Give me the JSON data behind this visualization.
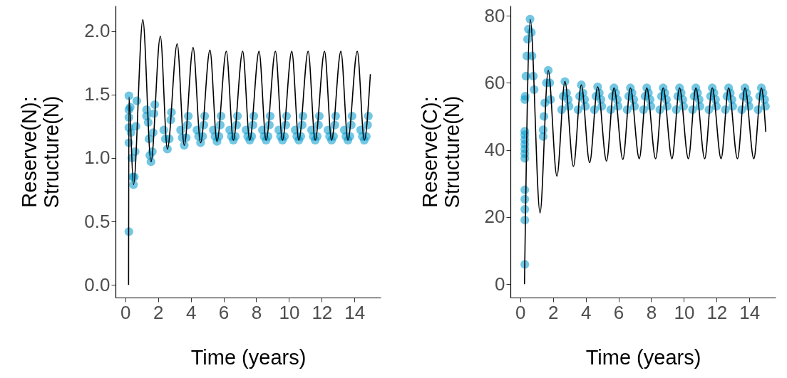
{
  "chart_data": [
    {
      "type": "line",
      "xlabel": "Time (years)",
      "ylabel": "Reserve(N):\nStructure(N)",
      "xlim": [
        -0.6,
        15.6
      ],
      "ylim": [
        -0.1,
        2.2
      ],
      "xticks": [
        0,
        2,
        4,
        6,
        8,
        10,
        12,
        14
      ],
      "yticks": [
        {
          "value": 0,
          "label": "0.0"
        },
        0.5,
        {
          "value": 1,
          "label": "1.0"
        },
        1.5,
        {
          "value": 2,
          "label": "2.0"
        }
      ],
      "grid": false,
      "series": [
        {
          "type": "scatter",
          "color": "#0099cc",
          "marker": "circle",
          "x": [
            0.22,
            0.22,
            0.22,
            0.22,
            0.22,
            0.22,
            0.3,
            0.35,
            0.4,
            0.45,
            0.5,
            0.55,
            0.6,
            0.65,
            0.7,
            1.3,
            1.3,
            1.4,
            1.45,
            1.5,
            1.57,
            1.65,
            1.7,
            1.75,
            1.8,
            2.35,
            2.45,
            2.57,
            2.68,
            2.78,
            2.82,
            3.38,
            3.48,
            3.6,
            3.72,
            3.8,
            3.85,
            4.38,
            4.48,
            4.6,
            4.72,
            4.8,
            4.85,
            5.38,
            5.48,
            5.6,
            5.72,
            5.8,
            5.85,
            6.38,
            6.48,
            6.6,
            6.72,
            6.8,
            6.85,
            7.38,
            7.48,
            7.6,
            7.72,
            7.8,
            7.85,
            8.38,
            8.48,
            8.6,
            8.72,
            8.8,
            8.85,
            9.38,
            9.48,
            9.6,
            9.72,
            9.8,
            9.85,
            10.38,
            10.48,
            10.6,
            10.72,
            10.8,
            10.85,
            11.38,
            11.48,
            11.6,
            11.72,
            11.8,
            11.85,
            12.38,
            12.48,
            12.6,
            12.72,
            12.8,
            12.85,
            13.38,
            13.48,
            13.6,
            13.72,
            13.8,
            13.85,
            14.38,
            14.48,
            14.6,
            14.72,
            14.8,
            14.85
          ],
          "values": [
            1.49,
            1.38,
            1.32,
            1.24,
            1.12,
            0.42,
            1.4,
            1.2,
            1.0,
            0.85,
            0.79,
            0.85,
            1.05,
            1.25,
            1.45,
            1.38,
            1.33,
            1.28,
            1.15,
            1.02,
            0.97,
            1.05,
            1.2,
            1.35,
            1.42,
            1.22,
            1.15,
            1.07,
            1.15,
            1.3,
            1.36,
            1.22,
            1.16,
            1.1,
            1.16,
            1.26,
            1.33,
            1.22,
            1.17,
            1.12,
            1.17,
            1.26,
            1.33,
            1.22,
            1.17,
            1.13,
            1.17,
            1.26,
            1.33,
            1.22,
            1.17,
            1.14,
            1.17,
            1.26,
            1.33,
            1.22,
            1.17,
            1.14,
            1.17,
            1.26,
            1.33,
            1.22,
            1.17,
            1.14,
            1.17,
            1.26,
            1.33,
            1.22,
            1.17,
            1.14,
            1.17,
            1.26,
            1.33,
            1.22,
            1.17,
            1.14,
            1.17,
            1.26,
            1.33,
            1.22,
            1.17,
            1.14,
            1.17,
            1.26,
            1.33,
            1.22,
            1.17,
            1.14,
            1.17,
            1.26,
            1.33,
            1.22,
            1.17,
            1.14,
            1.17,
            1.26,
            1.33,
            1.22,
            1.17,
            1.14,
            1.17,
            1.26,
            1.33
          ]
        },
        {
          "color": "#000000",
          "line_style": "solid",
          "x": [
            0.2,
            0.22,
            0.5,
            1.07,
            1.57,
            2.14,
            2.57,
            3.17,
            3.6,
            4.14,
            4.6,
            5.17,
            5.6,
            6.17,
            6.6,
            7.17,
            7.6,
            8.17,
            8.6,
            9.17,
            9.6,
            10.17,
            10.6,
            11.17,
            11.6,
            12.17,
            12.6,
            13.17,
            13.6,
            14.17,
            14.6,
            14.97
          ],
          "values": [
            0,
            1.48,
            0.79,
            2.09,
            0.97,
            1.96,
            1.07,
            1.9,
            1.1,
            1.87,
            1.12,
            1.85,
            1.13,
            1.84,
            1.14,
            1.84,
            1.14,
            1.84,
            1.14,
            1.84,
            1.14,
            1.84,
            1.14,
            1.84,
            1.14,
            1.84,
            1.14,
            1.84,
            1.14,
            1.84,
            1.14,
            1.66
          ]
        }
      ]
    },
    {
      "type": "line",
      "xlabel": "Time (years)",
      "ylabel": "Reserve(C):\nStructure(N)",
      "xlim": [
        -0.6,
        15.6
      ],
      "ylim": [
        -4,
        83
      ],
      "xticks": [
        0,
        2,
        4,
        6,
        8,
        10,
        12,
        14
      ],
      "yticks": [
        0,
        20,
        40,
        60,
        80
      ],
      "grid": false,
      "series": [
        {
          "type": "scatter",
          "color": "#0099cc",
          "marker": "circle",
          "x": [
            0.28,
            0.28,
            0.28,
            0.28,
            0.28,
            0.28,
            0.28,
            0.28,
            0.28,
            0.28,
            0.28,
            0.28,
            0.28,
            0.3,
            0.35,
            0.4,
            0.45,
            0.5,
            0.6,
            0.68,
            0.72,
            0.8,
            0.85,
            1.4,
            1.4,
            1.45,
            1.5,
            1.6,
            1.71,
            1.8,
            1.85,
            2.53,
            2.63,
            2.73,
            2.83,
            2.93,
            2.98,
            3.53,
            3.63,
            3.73,
            3.83,
            3.93,
            3.98,
            4.53,
            4.63,
            4.73,
            4.83,
            4.93,
            4.98,
            5.53,
            5.63,
            5.73,
            5.83,
            5.93,
            5.98,
            6.53,
            6.63,
            6.73,
            6.83,
            6.93,
            6.98,
            7.53,
            7.63,
            7.73,
            7.83,
            7.93,
            7.98,
            8.53,
            8.63,
            8.73,
            8.83,
            8.93,
            8.98,
            9.53,
            9.63,
            9.73,
            9.83,
            9.93,
            9.98,
            10.53,
            10.63,
            10.73,
            10.83,
            10.93,
            10.98,
            11.53,
            11.63,
            11.73,
            11.83,
            11.93,
            11.98,
            12.53,
            12.63,
            12.73,
            12.83,
            12.93,
            12.98,
            13.53,
            13.63,
            13.73,
            13.83,
            13.93,
            13.98,
            14.53,
            14.63,
            14.73,
            14.83,
            14.93,
            14.98
          ],
          "values": [
            5.9,
            19.1,
            22.3,
            25.3,
            28.1,
            37.5,
            38.9,
            40.3,
            41.7,
            43.1,
            44.5,
            45.6,
            55,
            56,
            62,
            68,
            73,
            76,
            79,
            75,
            68,
            62,
            58,
            44,
            46,
            50,
            54,
            60,
            63.7,
            60,
            55,
            52,
            56,
            60.4,
            57,
            55,
            53,
            52,
            56,
            59.4,
            57,
            55,
            53,
            52,
            56,
            58.8,
            57,
            55,
            53,
            52,
            56,
            58.5,
            57,
            55,
            53,
            52,
            56,
            58.5,
            57,
            55,
            53,
            52,
            56,
            58.5,
            57,
            55,
            53,
            52,
            56,
            58.5,
            57,
            55,
            53,
            52,
            56,
            58.5,
            57,
            55,
            53,
            52,
            56,
            58.5,
            57,
            55,
            53,
            52,
            56,
            58.5,
            57,
            55,
            53,
            52,
            56,
            58.5,
            57,
            55,
            53,
            52,
            56,
            58.5,
            57,
            55,
            53,
            52,
            56,
            58.5,
            57,
            55,
            53
          ]
        },
        {
          "color": "#000000",
          "line_style": "solid",
          "x": [
            0.26,
            0.61,
            1.21,
            1.71,
            2.24,
            2.73,
            3.25,
            3.73,
            4.24,
            4.73,
            5.27,
            5.73,
            6.27,
            6.73,
            7.27,
            7.73,
            8.27,
            8.73,
            9.27,
            9.73,
            10.27,
            10.73,
            11.27,
            11.73,
            12.27,
            12.73,
            13.27,
            13.73,
            14.27,
            14.73,
            15.0
          ],
          "values": [
            0,
            78.9,
            21.2,
            63.7,
            32.2,
            60.4,
            35.1,
            59.4,
            36.2,
            58.8,
            36.7,
            58.5,
            37.2,
            58.5,
            37.4,
            58.5,
            37.4,
            58.5,
            37.4,
            58.5,
            37.4,
            58.5,
            37.4,
            58.5,
            37.4,
            58.5,
            37.4,
            58.5,
            37.4,
            58.5,
            45.4
          ]
        }
      ]
    }
  ]
}
